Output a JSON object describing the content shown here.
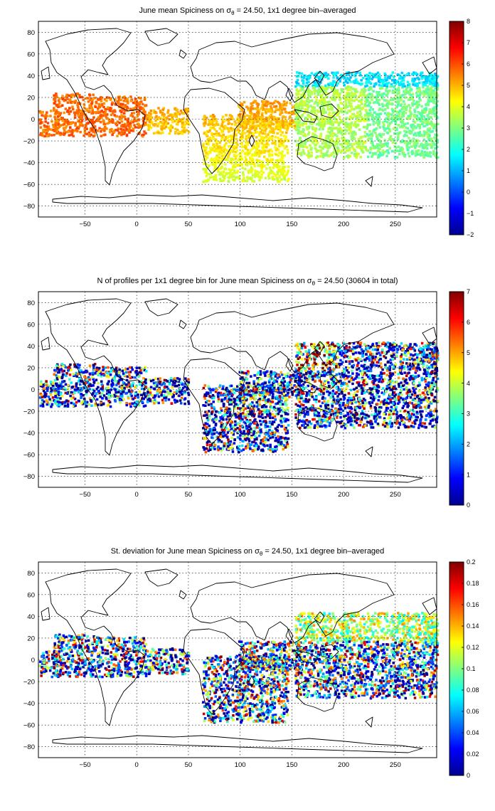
{
  "panels": [
    {
      "id": "mean",
      "title_pre": "June mean Spiciness on ",
      "title_post": " = 24.50, 1x1 degree bin–averaged",
      "sigma": "σ",
      "sigma_sub": "θ",
      "colorbar": {
        "min": -2,
        "max": 8,
        "ticks": [
          "8",
          "7",
          "6",
          "5",
          "4",
          "3",
          "2",
          "1",
          "0",
          "−1",
          "−2"
        ]
      },
      "cmap_scale": {
        "east_atlantic": 0.72,
        "indian": 0.66,
        "pacific_west": 0.5,
        "pacific_east": 0.44,
        "japan": 0.3
      }
    },
    {
      "id": "count",
      "title_pre": "N of profiles per 1x1 degree bin for June mean Spiciness on ",
      "title_post": " = 24.50 (30604 in total)",
      "sigma": "σ",
      "sigma_sub": "θ",
      "colorbar": {
        "min": 0,
        "max": 7,
        "ticks": [
          "7",
          "6",
          "5",
          "4",
          "3",
          "2",
          "1",
          "0"
        ]
      }
    },
    {
      "id": "std",
      "title_pre": "St. deviation for June mean Spiciness on ",
      "title_post": " = 24.50, 1x1 degree bin–averaged",
      "sigma": "σ",
      "sigma_sub": "θ",
      "colorbar": {
        "min": 0,
        "max": 0.2,
        "ticks": [
          "0.2",
          "0.18",
          "0.16",
          "0.14",
          "0.12",
          "0.1",
          "0.08",
          "0.06",
          "0.04",
          "0.02",
          "0"
        ]
      }
    }
  ],
  "axes": {
    "x_ticks": [
      "−50",
      "0",
      "50",
      "100",
      "150",
      "200",
      "250"
    ],
    "y_ticks": [
      "80",
      "60",
      "40",
      "20",
      "0",
      "−20",
      "−40",
      "−60",
      "−80"
    ],
    "x_range": [
      -95,
      290
    ],
    "y_range": [
      -90,
      90
    ]
  }
}
